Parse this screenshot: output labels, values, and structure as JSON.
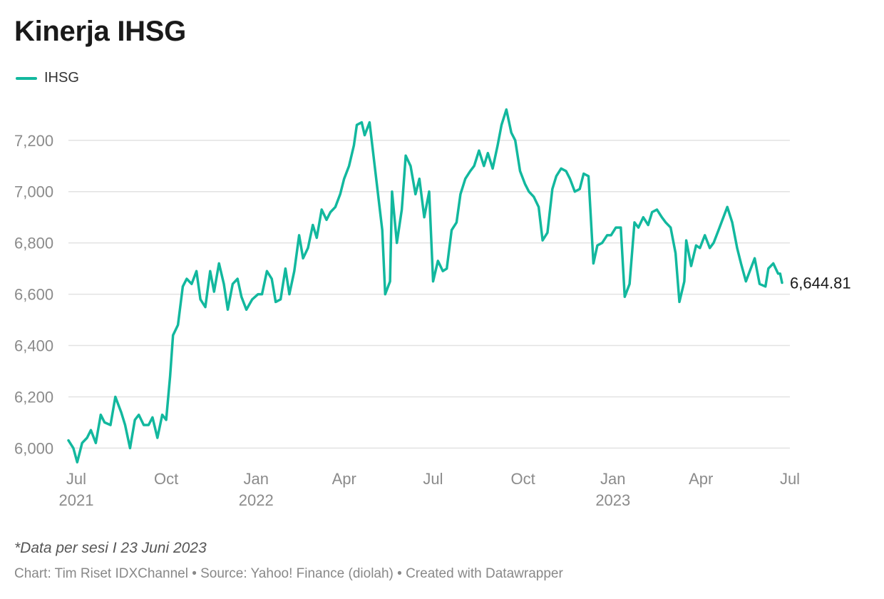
{
  "title": "Kinerja IHSG",
  "legend": {
    "label": "IHSG",
    "color": "#12b89e"
  },
  "footnote": "*Data per sesi I 23 Juni 2023",
  "credits": "Chart: Tim Riset IDXChannel • Source: Yahoo! Finance (diolah) • Created with Datawrapper",
  "chart_data": {
    "type": "line",
    "title": "Kinerja IHSG",
    "xlabel": "",
    "ylabel": "",
    "grid": true,
    "legend_position": "top-left",
    "ylim": [
      5940,
      7330
    ],
    "xlim": [
      "2021-06-23",
      "2023-07-01"
    ],
    "y_ticks": [
      6000,
      6200,
      6400,
      6600,
      6800,
      7000,
      7200
    ],
    "y_tick_labels": [
      "6,000",
      "6,200",
      "6,400",
      "6,600",
      "6,800",
      "7,000",
      "7,200"
    ],
    "x_ticks": [
      {
        "date": "2021-07-01",
        "label": "Jul",
        "year": "2021"
      },
      {
        "date": "2021-10-01",
        "label": "Oct",
        "year": ""
      },
      {
        "date": "2022-01-01",
        "label": "Jan",
        "year": "2022"
      },
      {
        "date": "2022-04-01",
        "label": "Apr",
        "year": ""
      },
      {
        "date": "2022-07-01",
        "label": "Jul",
        "year": ""
      },
      {
        "date": "2022-10-01",
        "label": "Oct",
        "year": ""
      },
      {
        "date": "2023-01-01",
        "label": "Jan",
        "year": "2023"
      },
      {
        "date": "2023-04-01",
        "label": "Apr",
        "year": ""
      },
      {
        "date": "2023-07-01",
        "label": "Jul",
        "year": ""
      }
    ],
    "end_label": "6,644.81",
    "series": [
      {
        "name": "IHSG",
        "color": "#12b89e",
        "x": [
          "2021-06-23",
          "2021-06-28",
          "2021-07-02",
          "2021-07-07",
          "2021-07-12",
          "2021-07-16",
          "2021-07-21",
          "2021-07-26",
          "2021-07-30",
          "2021-08-05",
          "2021-08-10",
          "2021-08-16",
          "2021-08-20",
          "2021-08-25",
          "2021-08-30",
          "2021-09-03",
          "2021-09-08",
          "2021-09-13",
          "2021-09-17",
          "2021-09-22",
          "2021-09-27",
          "2021-10-01",
          "2021-10-05",
          "2021-10-08",
          "2021-10-13",
          "2021-10-18",
          "2021-10-22",
          "2021-10-27",
          "2021-11-01",
          "2021-11-05",
          "2021-11-10",
          "2021-11-15",
          "2021-11-19",
          "2021-11-24",
          "2021-11-29",
          "2021-12-03",
          "2021-12-08",
          "2021-12-13",
          "2021-12-17",
          "2021-12-22",
          "2021-12-28",
          "2022-01-03",
          "2022-01-07",
          "2022-01-12",
          "2022-01-17",
          "2022-01-21",
          "2022-01-26",
          "2022-01-31",
          "2022-02-04",
          "2022-02-09",
          "2022-02-14",
          "2022-02-18",
          "2022-02-23",
          "2022-02-28",
          "2022-03-04",
          "2022-03-09",
          "2022-03-14",
          "2022-03-18",
          "2022-03-23",
          "2022-03-28",
          "2022-04-01",
          "2022-04-06",
          "2022-04-11",
          "2022-04-14",
          "2022-04-19",
          "2022-04-22",
          "2022-04-27",
          "2022-05-10",
          "2022-05-13",
          "2022-05-18",
          "2022-05-20",
          "2022-05-25",
          "2022-05-30",
          "2022-06-03",
          "2022-06-08",
          "2022-06-13",
          "2022-06-17",
          "2022-06-22",
          "2022-06-27",
          "2022-07-01",
          "2022-07-06",
          "2022-07-11",
          "2022-07-15",
          "2022-07-20",
          "2022-07-25",
          "2022-07-29",
          "2022-08-03",
          "2022-08-08",
          "2022-08-12",
          "2022-08-17",
          "2022-08-22",
          "2022-08-26",
          "2022-08-31",
          "2022-09-05",
          "2022-09-09",
          "2022-09-14",
          "2022-09-19",
          "2022-09-23",
          "2022-09-28",
          "2022-10-03",
          "2022-10-07",
          "2022-10-12",
          "2022-10-17",
          "2022-10-21",
          "2022-10-26",
          "2022-10-31",
          "2022-11-04",
          "2022-11-09",
          "2022-11-14",
          "2022-11-18",
          "2022-11-23",
          "2022-11-28",
          "2022-12-02",
          "2022-12-07",
          "2022-12-12",
          "2022-12-16",
          "2022-12-21",
          "2022-12-26",
          "2022-12-30",
          "2023-01-04",
          "2023-01-09",
          "2023-01-13",
          "2023-01-18",
          "2023-01-23",
          "2023-01-27",
          "2023-02-01",
          "2023-02-06",
          "2023-02-10",
          "2023-02-15",
          "2023-02-20",
          "2023-02-24",
          "2023-03-01",
          "2023-03-06",
          "2023-03-10",
          "2023-03-15",
          "2023-03-17",
          "2023-03-22",
          "2023-03-27",
          "2023-03-31",
          "2023-04-05",
          "2023-04-10",
          "2023-04-14",
          "2023-04-19",
          "2023-04-28",
          "2023-05-03",
          "2023-05-08",
          "2023-05-12",
          "2023-05-17",
          "2023-05-22",
          "2023-05-26",
          "2023-05-31",
          "2023-06-06",
          "2023-06-09",
          "2023-06-14",
          "2023-06-19",
          "2023-06-21",
          "2023-06-23"
        ],
        "y": [
          6030,
          6000,
          5945,
          6020,
          6040,
          6070,
          6020,
          6130,
          6100,
          6090,
          6200,
          6140,
          6090,
          6000,
          6110,
          6130,
          6090,
          6090,
          6120,
          6040,
          6130,
          6110,
          6280,
          6440,
          6480,
          6630,
          6660,
          6640,
          6690,
          6580,
          6550,
          6690,
          6610,
          6720,
          6640,
          6540,
          6640,
          6660,
          6590,
          6540,
          6580,
          6600,
          6600,
          6690,
          6660,
          6570,
          6580,
          6700,
          6600,
          6690,
          6830,
          6740,
          6780,
          6870,
          6820,
          6930,
          6890,
          6920,
          6940,
          6990,
          7050,
          7100,
          7180,
          7260,
          7270,
          7220,
          7270,
          6850,
          6600,
          6650,
          7000,
          6800,
          6930,
          7140,
          7100,
          6990,
          7050,
          6900,
          7000,
          6650,
          6730,
          6690,
          6700,
          6850,
          6880,
          6990,
          7050,
          7080,
          7100,
          7160,
          7100,
          7150,
          7090,
          7180,
          7260,
          7320,
          7230,
          7200,
          7080,
          7030,
          7000,
          6980,
          6940,
          6810,
          6840,
          7010,
          7060,
          7090,
          7080,
          7050,
          7000,
          7010,
          7070,
          7060,
          6720,
          6790,
          6800,
          6830,
          6830,
          6860,
          6860,
          6590,
          6640,
          6880,
          6860,
          6900,
          6870,
          6920,
          6930,
          6900,
          6880,
          6860,
          6760,
          6570,
          6650,
          6810,
          6710,
          6790,
          6780,
          6830,
          6780,
          6800,
          6850,
          6940,
          6880,
          6780,
          6720,
          6650,
          6700,
          6740,
          6640,
          6630,
          6700,
          6720,
          6680,
          6680,
          6644.81
        ]
      }
    ]
  }
}
